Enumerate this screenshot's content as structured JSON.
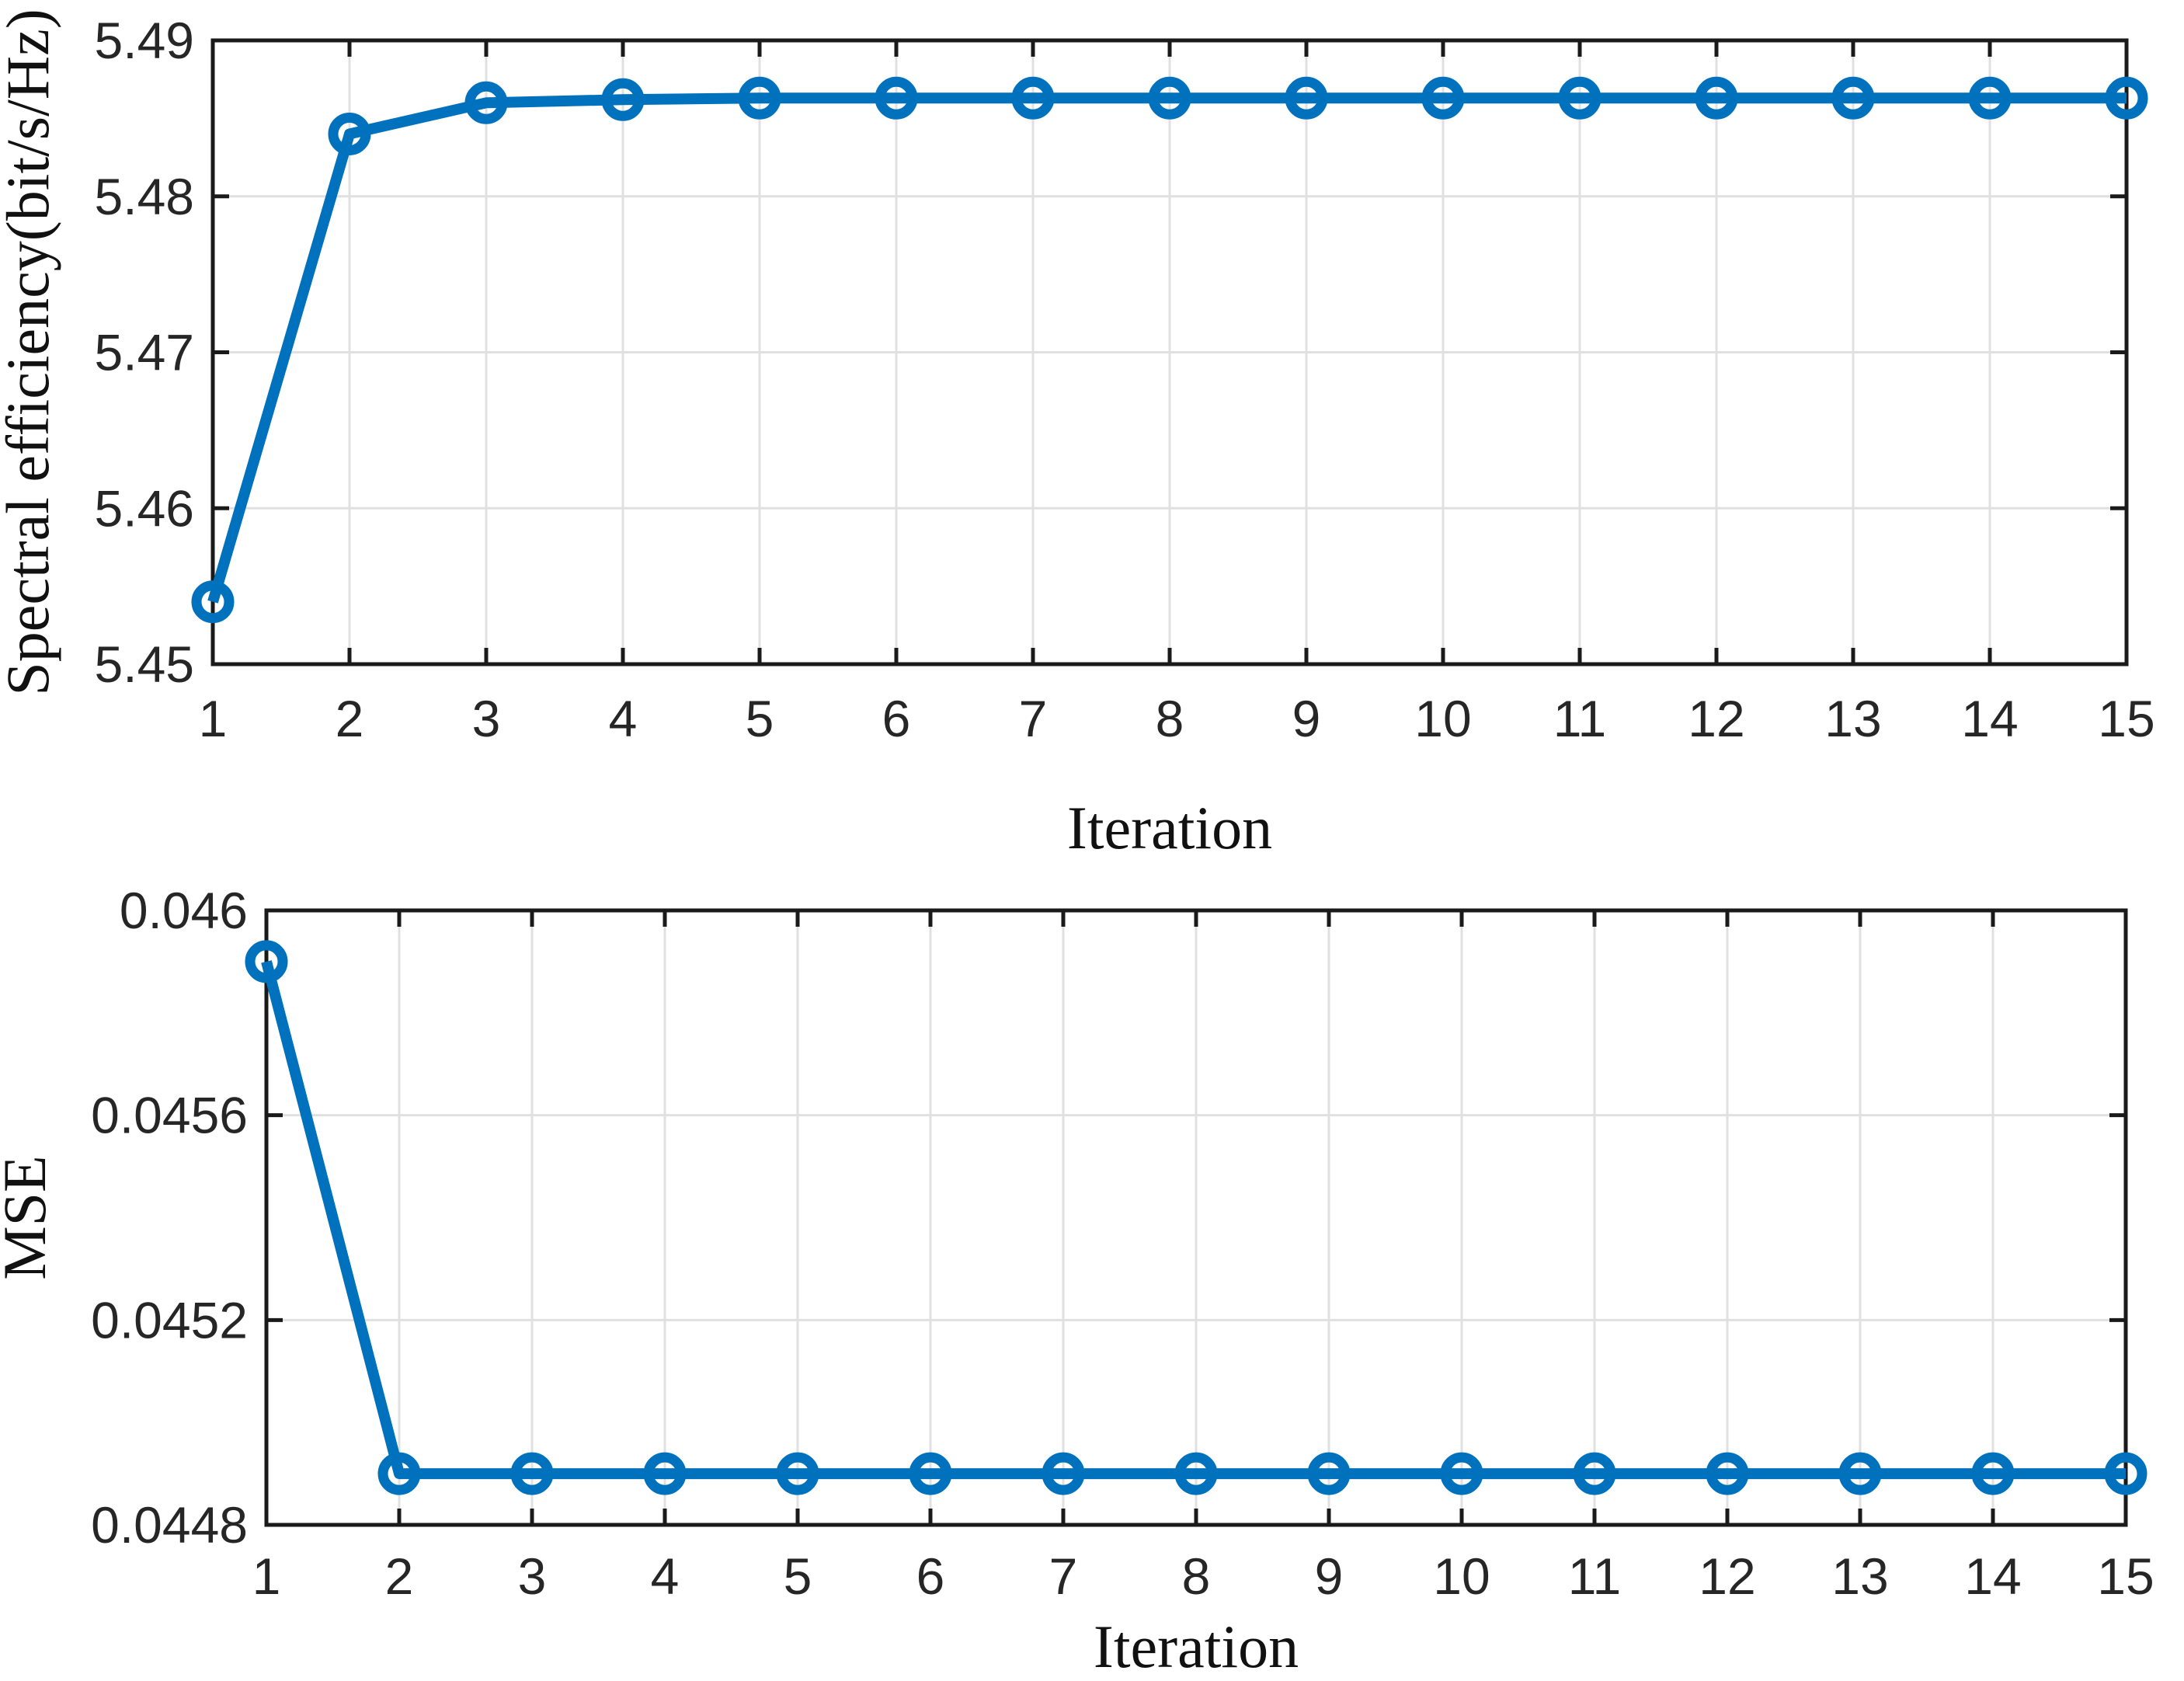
{
  "figure": {
    "background": "#ffffff"
  },
  "style": {
    "line_color": "#0072BD",
    "axis_color": "#1a1a1a",
    "grid_color": "#e0e0e0",
    "tick_label_color": "#262626",
    "axis_label_color": "#111111",
    "line_width": 14,
    "marker_radius": 21,
    "marker_stroke": 13,
    "axis_stroke": 5,
    "grid_stroke": 3,
    "tick_length": 21
  },
  "chart_data": [
    {
      "type": "line",
      "title": "",
      "xlabel": "Iteration",
      "ylabel": "Spectral efficiency(bit/s/Hz)",
      "x": [
        1,
        2,
        3,
        4,
        5,
        6,
        7,
        8,
        9,
        10,
        11,
        12,
        13,
        14,
        15
      ],
      "x_tick_labels": [
        "1",
        "2",
        "3",
        "4",
        "5",
        "6",
        "7",
        "8",
        "9",
        "10",
        "11",
        "12",
        "13",
        "14",
        "15"
      ],
      "values": [
        5.454,
        5.484,
        5.486,
        5.4862,
        5.4863,
        5.4863,
        5.4863,
        5.4863,
        5.4863,
        5.4863,
        5.4863,
        5.4863,
        5.4863,
        5.4863,
        5.4863
      ],
      "ylim": [
        5.45,
        5.49
      ],
      "yticks": [
        5.45,
        5.46,
        5.47,
        5.48,
        5.49
      ],
      "y_tick_labels": [
        "5.45",
        "5.46",
        "5.47",
        "5.48",
        "5.49"
      ],
      "grid": true,
      "legend": null,
      "marker": "open-circle"
    },
    {
      "type": "line",
      "title": "",
      "xlabel": "Iteration",
      "ylabel": "MSE",
      "x": [
        1,
        2,
        3,
        4,
        5,
        6,
        7,
        8,
        9,
        10,
        11,
        12,
        13,
        14,
        15
      ],
      "x_tick_labels": [
        "1",
        "2",
        "3",
        "4",
        "5",
        "6",
        "7",
        "8",
        "9",
        "10",
        "11",
        "12",
        "13",
        "14",
        "15"
      ],
      "values": [
        0.0459,
        0.0449,
        0.0449,
        0.0449,
        0.0449,
        0.0449,
        0.0449,
        0.0449,
        0.0449,
        0.0449,
        0.0449,
        0.0449,
        0.0449,
        0.0449,
        0.0449
      ],
      "ylim": [
        0.0448,
        0.046
      ],
      "yticks": [
        0.0448,
        0.0452,
        0.0456,
        0.046
      ],
      "y_tick_labels": [
        "0.0448",
        "0.0452",
        "0.0456",
        "0.046"
      ],
      "grid": true,
      "legend": null,
      "marker": "open-circle"
    }
  ]
}
